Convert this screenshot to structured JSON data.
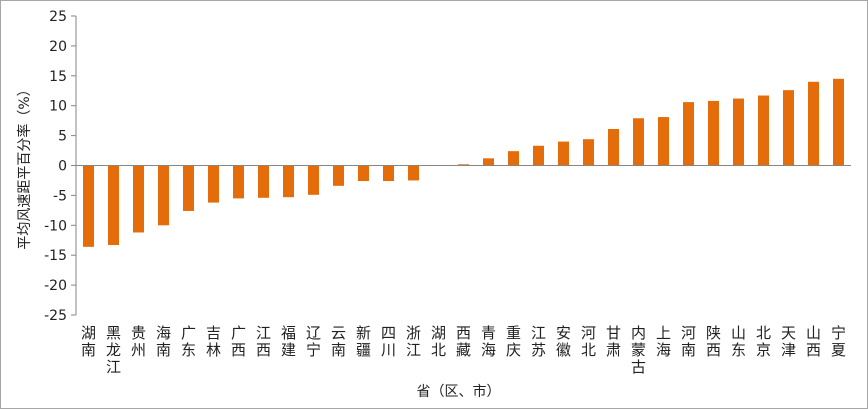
{
  "chart_data": {
    "type": "bar",
    "xlabel": "省（区、市）",
    "ylabel": "平均风速距平百分率（%）",
    "ylim": [
      -25,
      25
    ],
    "yticks": [
      25,
      20,
      15,
      10,
      5,
      0,
      -5,
      -10,
      -15,
      -20,
      -25
    ],
    "grid": false,
    "bar_color": "#e46c0a",
    "axis_color": "#868686",
    "categories": [
      "湖南",
      "黑龙江",
      "贵州",
      "海南",
      "广东",
      "吉林",
      "广西",
      "江西",
      "福建",
      "辽宁",
      "云南",
      "新疆",
      "四川",
      "浙江",
      "湖北",
      "西藏",
      "青海",
      "重庆",
      "江苏",
      "安徽",
      "河北",
      "甘肃",
      "内蒙古",
      "上海",
      "河南",
      "陕西",
      "山东",
      "北京",
      "天津",
      "山西",
      "宁夏"
    ],
    "values": [
      -13.6,
      -13.3,
      -11.2,
      -10.0,
      -7.6,
      -6.2,
      -5.5,
      -5.4,
      -5.3,
      -4.9,
      -3.4,
      -2.6,
      -2.6,
      -2.5,
      0.0,
      0.2,
      1.2,
      2.4,
      3.3,
      4.0,
      4.4,
      6.1,
      7.9,
      8.1,
      10.6,
      10.8,
      11.2,
      11.7,
      12.6,
      14.0,
      14.5
    ]
  }
}
